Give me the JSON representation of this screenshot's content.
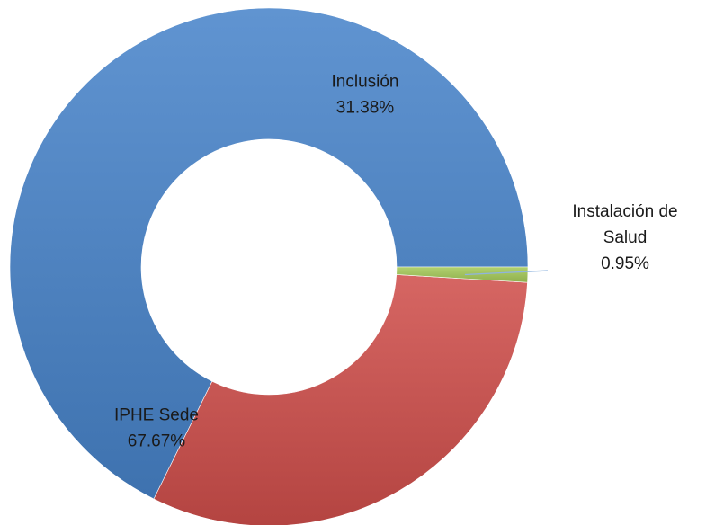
{
  "chart_data": {
    "type": "pie",
    "style": "donut",
    "categories": [
      "IPHE Sede",
      "Inclusión",
      "Instalación de Salud"
    ],
    "values": [
      67.67,
      31.38,
      0.95
    ],
    "unit": "%",
    "colors": [
      "#4A7EBB",
      "#C0504D",
      "#9BBB59"
    ],
    "labels": [
      {
        "lines": [
          "IPHE Sede"
        ],
        "value_text": "67.67%"
      },
      {
        "lines": [
          "Inclusión"
        ],
        "value_text": "31.38%"
      },
      {
        "lines": [
          "Instalación de",
          "Salud"
        ],
        "value_text": "0.95%"
      }
    ],
    "legend": "none"
  }
}
